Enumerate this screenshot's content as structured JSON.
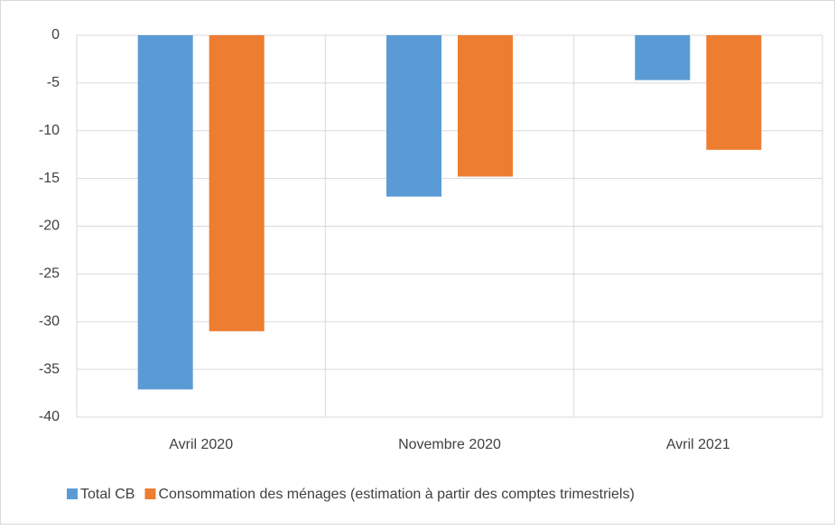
{
  "chart_data": {
    "type": "bar",
    "categories": [
      "Avril 2020",
      "Novembre 2020",
      "Avril 2021"
    ],
    "series": [
      {
        "name": "Total CB",
        "color": "#5b9bd5",
        "values": [
          -37.1,
          -16.9,
          -4.7
        ]
      },
      {
        "name": "Consommation des ménages (estimation à partir des comptes trimestriels)",
        "color": "#ed7d31",
        "values": [
          -31,
          -14.8,
          -12
        ]
      }
    ],
    "ylim": [
      -40,
      0
    ],
    "yticks": [
      0,
      -5,
      -10,
      -15,
      -20,
      -25,
      -30,
      -35,
      -40
    ],
    "grid": true,
    "legend": "bottom"
  }
}
